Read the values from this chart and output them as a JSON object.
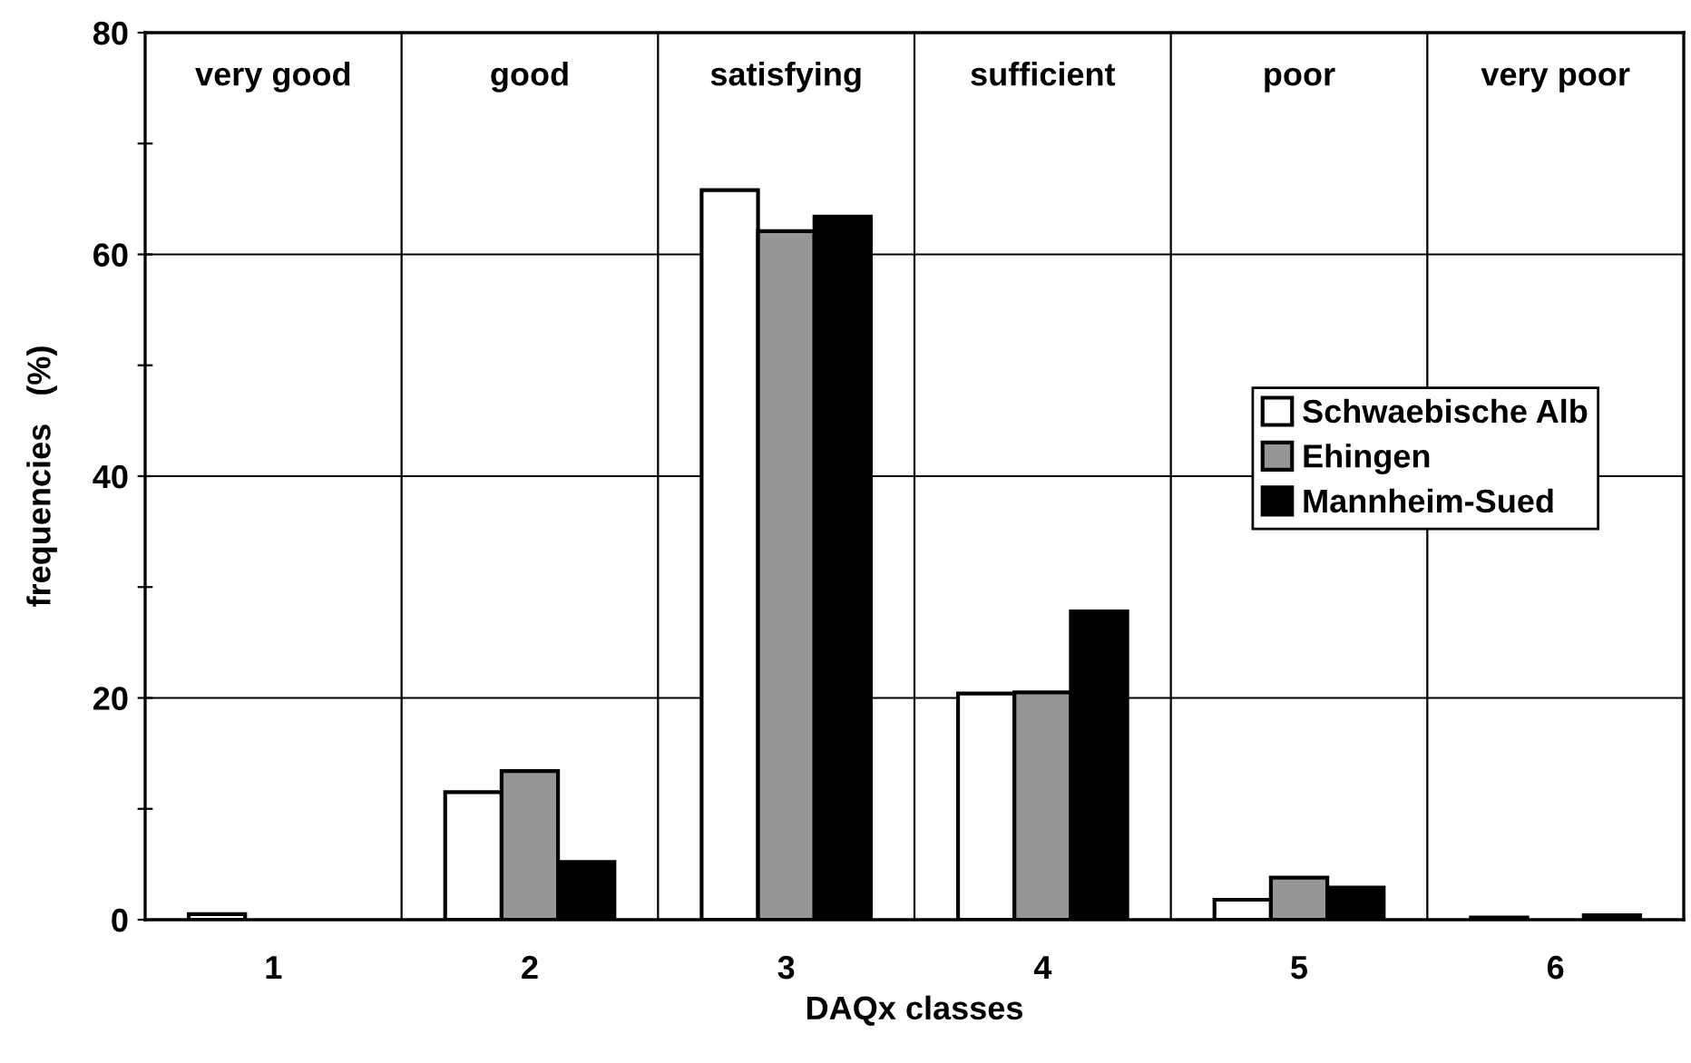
{
  "chart_data": {
    "type": "bar",
    "categories": [
      "1",
      "2",
      "3",
      "4",
      "5",
      "6"
    ],
    "xlabel": "DAQx classes",
    "ylabel": "frequencies   (%)",
    "series": [
      {
        "name": "Schwaebische Alb",
        "color": "#ffffff",
        "values": [
          0.5,
          11.5,
          65.8,
          20.4,
          1.8,
          0.2
        ]
      },
      {
        "name": "Ehingen",
        "color": "#969696",
        "values": [
          null,
          13.4,
          62.1,
          20.5,
          3.8,
          null
        ]
      },
      {
        "name": "Mannheim-Sued",
        "color": "#000000",
        "values": [
          null,
          5.2,
          63.4,
          27.8,
          2.9,
          0.4
        ]
      }
    ],
    "annotations": [
      "very good",
      "good",
      "satisfying",
      "sufficient",
      "poor",
      "very poor"
    ],
    "ylim": [
      0,
      80
    ],
    "yticks": [
      0,
      {
        "value": 10,
        "label": null
      },
      20,
      {
        "value": 30,
        "label": null
      },
      40,
      {
        "value": 50,
        "label": null
      },
      60,
      {
        "value": 70,
        "label": null
      },
      80
    ],
    "grid": true,
    "legend": "right"
  }
}
